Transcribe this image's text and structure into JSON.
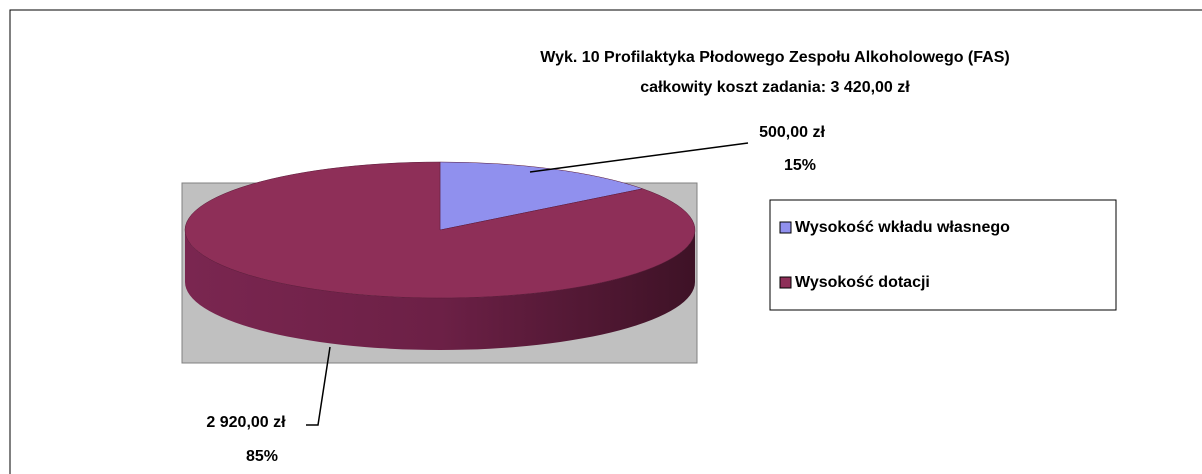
{
  "chart_data": {
    "type": "pie",
    "title": [
      "Wyk. 10 Profilaktyka Płodowego Zespołu Alkoholowego (FAS)",
      "całkowity koszt zadania: 3 420,00 zł"
    ],
    "categories": [
      "Wysokość wkładu własnego",
      "Wysokość dotacji"
    ],
    "values": [
      500,
      2920
    ],
    "value_labels": [
      "500,00 zł",
      "2 920,00 zł"
    ],
    "percent_labels": [
      "15%",
      "85%"
    ],
    "colors": [
      "#9090ee",
      "#8e2f58"
    ],
    "legend": "right"
  }
}
